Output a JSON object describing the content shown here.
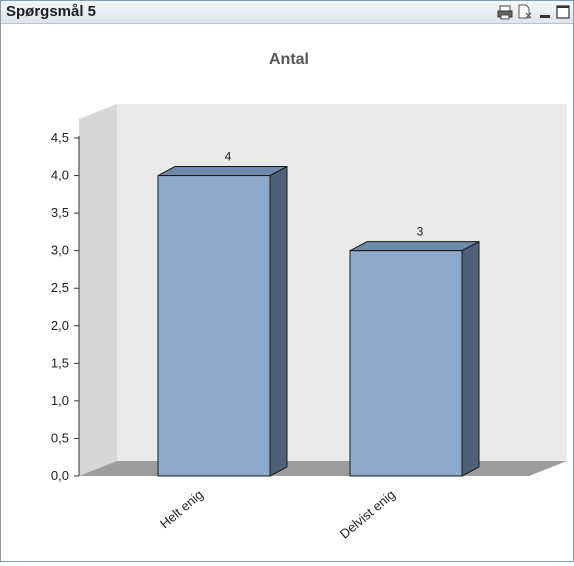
{
  "window": {
    "title": "Spørgsmål 5",
    "icons": [
      "print-icon",
      "export-excel-icon",
      "minimize-icon",
      "maximize-icon"
    ]
  },
  "colors": {
    "bar_front": "#8ea9c9",
    "bar_side": "#4d6075",
    "bar_top": "#6f89a9",
    "back_wall": "#eaeaea",
    "side_wall": "#d7d7d7",
    "floor": "#9d9d9d"
  },
  "chart_data": {
    "type": "bar",
    "title": "Antal",
    "categories": [
      "Helt enig",
      "Delvist enig"
    ],
    "values": [
      4,
      3
    ],
    "data_labels": [
      "4",
      "3"
    ],
    "ylim": [
      0,
      4.5
    ],
    "yticks": [
      "0,0",
      "0,5",
      "1,0",
      "1,5",
      "2,0",
      "2,5",
      "3,0",
      "3,5",
      "4,0",
      "4,5"
    ],
    "xlabel": "",
    "ylabel": "",
    "grid": false,
    "style": "3d"
  }
}
